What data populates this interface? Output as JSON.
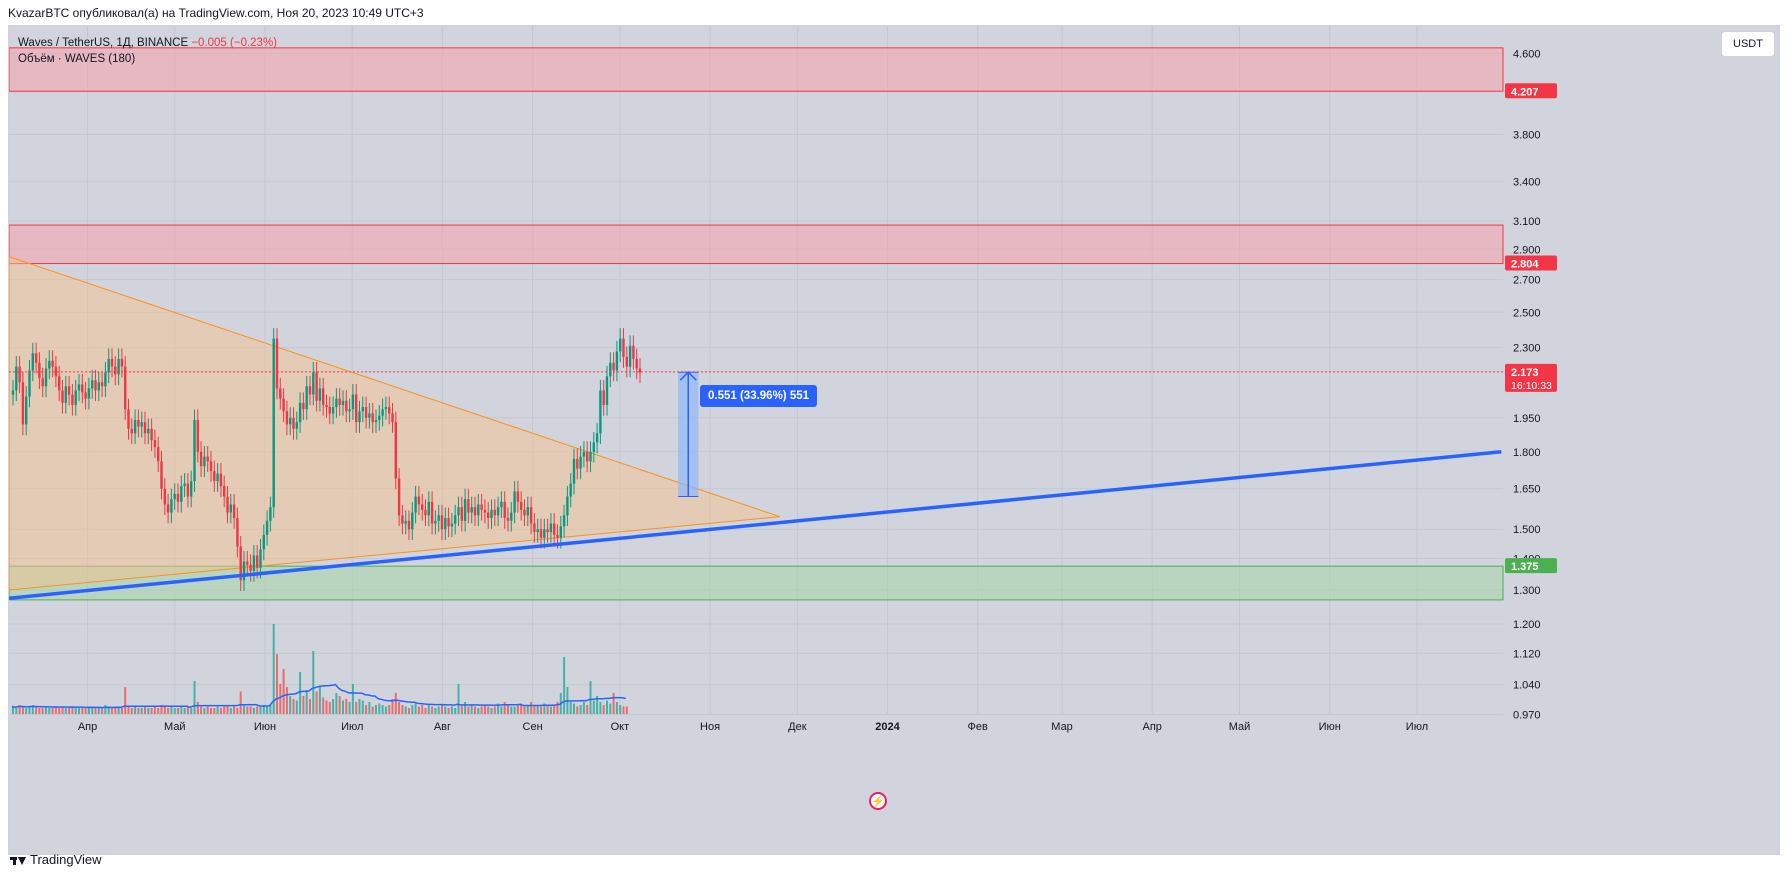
{
  "header": {
    "text": "KvazarBTC опубликовал(а) на TradingView.com, Ноя 20, 2023 10:49 UTC+3"
  },
  "legend": {
    "symbol": "Waves / TetherUS, 1Д, BINANCE",
    "change": "−0.005 (−0.23%)",
    "volume_label": "Объём · WAVES (180)"
  },
  "currency_button": "USDT",
  "measure_label": "0.551 (33.96%) 551",
  "footer": {
    "brand": "TradingView"
  },
  "colors": {
    "background": "#d1d4dc",
    "resistance_zone": "#f7a1ac",
    "support_zone": "#a5d6a7",
    "triangle_fill": "#f5c28d",
    "trendline": "#2962ff",
    "up_candle": "#089981",
    "down_candle": "#f23645",
    "measure_fill": "#90b8f8",
    "price_label": "#f23645",
    "support_label": "#4caf50"
  },
  "chart_data": {
    "type": "candlestick",
    "symbol": "Waves / TetherUS",
    "interval": "1Д",
    "exchange": "BINANCE",
    "y_scale": "log",
    "ylim": [
      0.91,
      4.85
    ],
    "y_ticks": [
      "4.600",
      "3.800",
      "3.400",
      "3.100",
      "2.900",
      "2.700",
      "2.500",
      "2.300",
      "1.950",
      "1.800",
      "1.650",
      "1.500",
      "1.400",
      "1.300",
      "1.200",
      "1.120",
      "1.040",
      "0.970"
    ],
    "x_ticks": [
      "Апр",
      "Май",
      "Июн",
      "Июл",
      "Авг",
      "Сен",
      "Окт",
      "Ноя",
      "Дек",
      "2024",
      "Фев",
      "Мар",
      "Апр",
      "Май",
      "Июн",
      "Июл"
    ],
    "price_labels": [
      {
        "label": "4.207",
        "value": 4.207,
        "kind": "zone"
      },
      {
        "label": "2.804",
        "value": 2.804,
        "kind": "zone"
      },
      {
        "label": "2.173",
        "value": 2.173,
        "kind": "last",
        "countdown": "16:10:33"
      },
      {
        "label": "1.375",
        "value": 1.375,
        "kind": "support"
      }
    ],
    "zones": [
      {
        "type": "resistance",
        "low": 4.207,
        "high": 4.66
      },
      {
        "type": "resistance",
        "low": 2.804,
        "high": 3.07
      },
      {
        "type": "support",
        "low": 1.27,
        "high": 1.375
      }
    ],
    "trendline": {
      "start": [
        "2023-03-05",
        1.275
      ],
      "end": [
        "2024-07-30",
        1.8
      ]
    },
    "triangle": {
      "apex": [
        "2023-11-25",
        1.545
      ],
      "upper_start": [
        "2023-03-05",
        2.85
      ],
      "lower_start": [
        "2023-03-05",
        1.3
      ]
    },
    "measure": {
      "from": 1.62,
      "to": 2.171,
      "start": "2023-10-21",
      "end": "2023-10-28",
      "diff": 0.551,
      "pct": "33.96%",
      "bars": 551
    },
    "last_price": 2.173,
    "candles_close": [
      2.08,
      2.2,
      2.12,
      1.92,
      2.05,
      2.18,
      2.27,
      2.22,
      2.14,
      2.1,
      2.19,
      2.23,
      2.2,
      2.15,
      2.08,
      2.02,
      2.1,
      2.06,
      2.01,
      2.08,
      2.11,
      2.07,
      2.04,
      2.09,
      2.13,
      2.08,
      2.12,
      2.1,
      2.17,
      2.24,
      2.2,
      2.16,
      2.24,
      2.2,
      1.99,
      1.9,
      1.88,
      1.94,
      1.91,
      1.93,
      1.88,
      1.9,
      1.85,
      1.82,
      1.76,
      1.65,
      1.59,
      1.56,
      1.61,
      1.63,
      1.6,
      1.66,
      1.67,
      1.62,
      1.68,
      1.94,
      1.8,
      1.74,
      1.78,
      1.76,
      1.72,
      1.68,
      1.71,
      1.66,
      1.62,
      1.56,
      1.59,
      1.54,
      1.44,
      1.33,
      1.39,
      1.38,
      1.36,
      1.41,
      1.37,
      1.43,
      1.48,
      1.53,
      1.58,
      2.35,
      2.09,
      2.04,
      1.98,
      1.92,
      1.95,
      1.9,
      1.93,
      2.02,
      1.99,
      2.1,
      2.06,
      2.17,
      2.03,
      2.09,
      2.01,
      2.0,
      1.97,
      2.0,
      2.04,
      2.01,
      2.03,
      1.98,
      1.99,
      2.06,
      1.93,
      1.98,
      2.0,
      1.95,
      1.97,
      1.93,
      1.94,
      1.96,
      1.99,
      2.0,
      1.97,
      1.93,
      1.69,
      1.55,
      1.52,
      1.53,
      1.5,
      1.56,
      1.62,
      1.59,
      1.57,
      1.55,
      1.6,
      1.52,
      1.53,
      1.55,
      1.5,
      1.54,
      1.51,
      1.52,
      1.55,
      1.58,
      1.53,
      1.61,
      1.56,
      1.58,
      1.55,
      1.59,
      1.57,
      1.56,
      1.54,
      1.57,
      1.55,
      1.58,
      1.6,
      1.54,
      1.53,
      1.56,
      1.64,
      1.6,
      1.57,
      1.55,
      1.58,
      1.52,
      1.49,
      1.5,
      1.47,
      1.5,
      1.49,
      1.52,
      1.48,
      1.47,
      1.51,
      1.55,
      1.62,
      1.67,
      1.77,
      1.73,
      1.78,
      1.8,
      1.76,
      1.8,
      1.84,
      1.88,
      2.08,
      2.01,
      2.15,
      2.22,
      2.18,
      2.28,
      2.35,
      2.25,
      2.2,
      2.31,
      2.24,
      2.19,
      2.17
    ],
    "volume": [
      5,
      4,
      6,
      5,
      4,
      5,
      6,
      5,
      4,
      4,
      5,
      4,
      4,
      5,
      4,
      5,
      4,
      4,
      5,
      4,
      4,
      5,
      4,
      4,
      5,
      4,
      5,
      4,
      6,
      5,
      4,
      4,
      5,
      4,
      18,
      5,
      4,
      5,
      4,
      4,
      5,
      4,
      4,
      5,
      4,
      6,
      5,
      4,
      5,
      4,
      4,
      5,
      4,
      5,
      4,
      22,
      8,
      5,
      4,
      5,
      4,
      4,
      5,
      4,
      5,
      6,
      4,
      5,
      4,
      15,
      6,
      5,
      5,
      4,
      5,
      5,
      6,
      5,
      6,
      60,
      40,
      20,
      30,
      18,
      12,
      10,
      9,
      28,
      12,
      16,
      10,
      42,
      15,
      18,
      11,
      9,
      8,
      10,
      14,
      12,
      9,
      10,
      8,
      20,
      8,
      10,
      9,
      6,
      8,
      5,
      6,
      7,
      6,
      5,
      6,
      10,
      14,
      8,
      6,
      5,
      4,
      6,
      7,
      5,
      6,
      4,
      6,
      5,
      4,
      5,
      6,
      5,
      4,
      5,
      4,
      20,
      6,
      8,
      5,
      6,
      5,
      4,
      5,
      6,
      5,
      4,
      5,
      7,
      5,
      8,
      6,
      5,
      5,
      6,
      7,
      5,
      6,
      8,
      5,
      6,
      5,
      7,
      6,
      5,
      6,
      8,
      14,
      38,
      18,
      8,
      7,
      5,
      6,
      8,
      6,
      22,
      9,
      12,
      8,
      6,
      9,
      7,
      14,
      8,
      6,
      5,
      5
    ]
  }
}
